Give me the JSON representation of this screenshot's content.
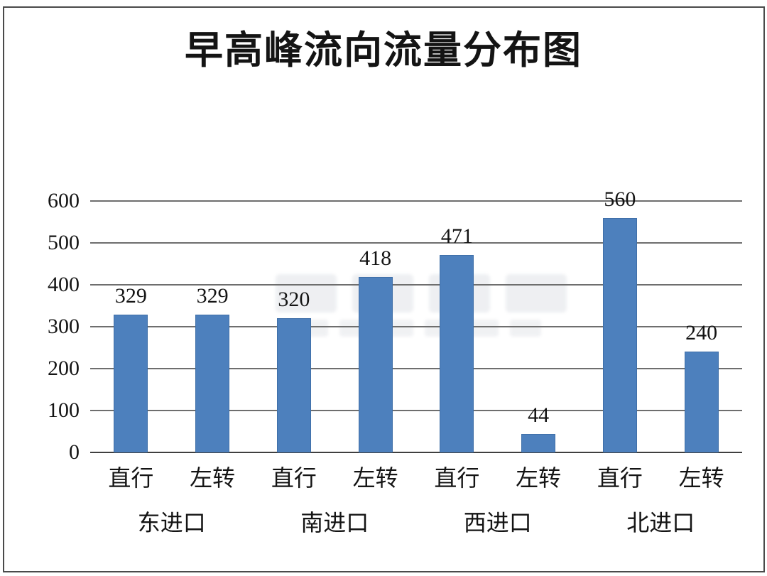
{
  "chart_data": {
    "type": "bar",
    "title": "早高峰流向流量分布图",
    "categories": [
      "直行",
      "左转",
      "直行",
      "左转",
      "直行",
      "左转",
      "直行",
      "左转"
    ],
    "groups": [
      {
        "label": "东进口"
      },
      {
        "label": "南进口"
      },
      {
        "label": "西进口"
      },
      {
        "label": "北进口"
      }
    ],
    "values": [
      329,
      329,
      320,
      418,
      471,
      44,
      560,
      240
    ],
    "yticks": [
      0,
      100,
      200,
      300,
      400,
      500,
      600
    ],
    "ylim": [
      0,
      600
    ],
    "grid": true,
    "data_labels": true,
    "legend": "none",
    "bar_color": "#4d80bd",
    "bar_border_color": "#3f6fa8",
    "gridline_color": "#6e6e6e",
    "axis_line_color": "#3f3f3f",
    "text_color": "#141414",
    "background_color": "#ffffff",
    "frame_border_color": "#4a4a4a"
  }
}
